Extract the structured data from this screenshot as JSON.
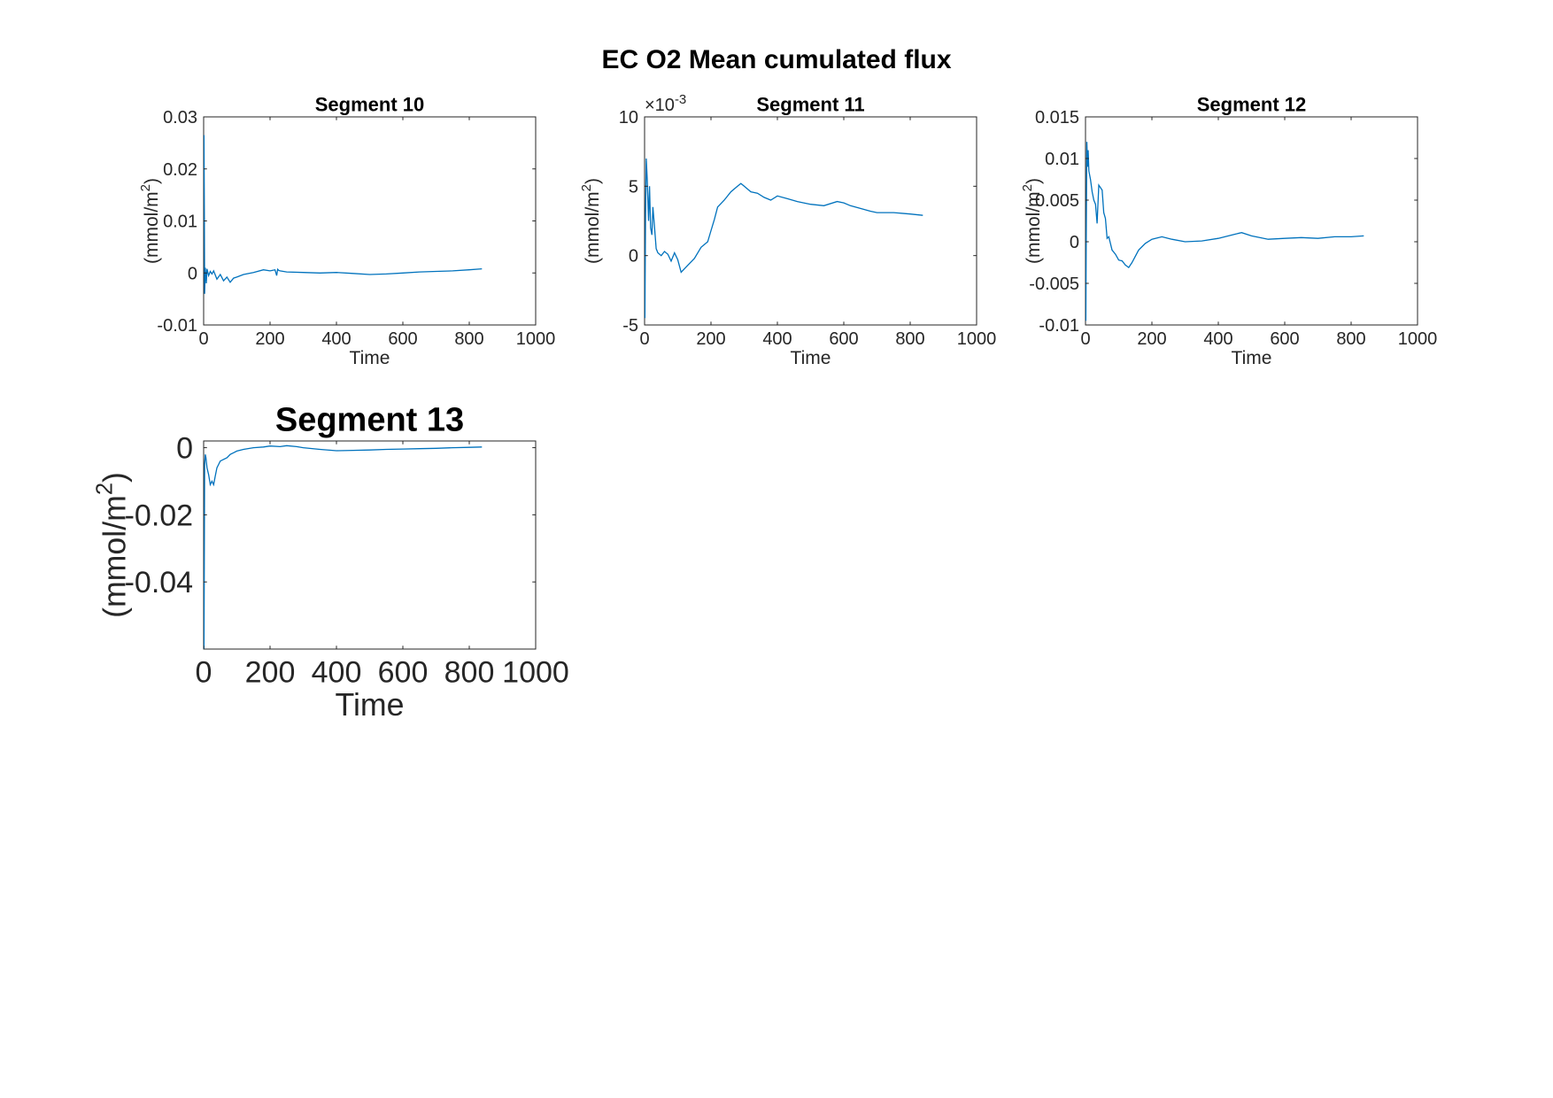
{
  "figure_title": "EC O2 Mean cumulated flux",
  "line_color": "#0072BD",
  "chart_data": [
    {
      "type": "line",
      "title": "Segment 10",
      "xlabel": "Time",
      "ylabel": "(mmol/m",
      "ylabel_sup": "2",
      "ylabel_end": ")",
      "xlim": [
        0,
        1000
      ],
      "ylim": [
        -0.01,
        0.03
      ],
      "xticks": [
        0,
        200,
        400,
        600,
        800,
        1000
      ],
      "xtick_labels": [
        "0",
        "200",
        "400",
        "600",
        "800",
        "1000"
      ],
      "yticks": [
        -0.01,
        0,
        0.01,
        0.02,
        0.03
      ],
      "ytick_labels": [
        "-0.01",
        "0",
        "0.01",
        "0.02",
        "0.03"
      ],
      "exponent_label": null,
      "grid": false,
      "legend": null,
      "series": [
        {
          "x": [
            1,
            2,
            3,
            5,
            8,
            10,
            15,
            20,
            25,
            30,
            40,
            50,
            60,
            70,
            80,
            90,
            100,
            120,
            150,
            180,
            200,
            215,
            220,
            223,
            226,
            230,
            250,
            300,
            350,
            400,
            450,
            500,
            550,
            600,
            650,
            700,
            750,
            800,
            838
          ],
          "y": [
            0.0265,
            0.012,
            -0.004,
            0.001,
            -0.002,
            0.0008,
            -0.0005,
            0.0003,
            -0.0002,
            0.0004,
            -0.0012,
            -0.0003,
            -0.0015,
            -0.0008,
            -0.0018,
            -0.001,
            -0.0008,
            -0.0003,
            0.0001,
            0.0006,
            0.0004,
            0.0006,
            -0.0005,
            0.0007,
            0.0005,
            0.0004,
            0.0002,
            0.0001,
            0.0,
            0.0001,
            -0.0001,
            -0.0003,
            -0.0002,
            0.0,
            0.0002,
            0.0003,
            0.0004,
            0.0006,
            0.0008
          ]
        }
      ]
    },
    {
      "type": "line",
      "title": "Segment 11",
      "xlabel": "Time",
      "ylabel": "(mmol/m",
      "ylabel_sup": "2",
      "ylabel_end": ")",
      "xlim": [
        0,
        1000
      ],
      "ylim": [
        -5,
        10
      ],
      "xticks": [
        0,
        200,
        400,
        600,
        800,
        1000
      ],
      "xtick_labels": [
        "0",
        "200",
        "400",
        "600",
        "800",
        "1000"
      ],
      "yticks": [
        -5,
        0,
        5,
        10
      ],
      "ytick_labels": [
        "-5",
        "0",
        "5",
        "10"
      ],
      "exponent_label": "×10",
      "exponent_sup": "-3",
      "grid": false,
      "legend": null,
      "series": [
        {
          "x": [
            1,
            3,
            5,
            8,
            12,
            15,
            18,
            22,
            25,
            30,
            35,
            40,
            50,
            60,
            70,
            80,
            90,
            100,
            110,
            130,
            150,
            170,
            190,
            200,
            210,
            220,
            240,
            260,
            280,
            290,
            300,
            320,
            340,
            360,
            380,
            400,
            430,
            460,
            500,
            540,
            580,
            600,
            620,
            650,
            680,
            700,
            750,
            800,
            838
          ],
          "y": [
            -4.5,
            3.0,
            7.0,
            5.5,
            2.5,
            5.0,
            2.0,
            1.5,
            3.5,
            2.0,
            0.5,
            0.2,
            0.0,
            0.3,
            0.1,
            -0.4,
            0.2,
            -0.3,
            -1.2,
            -0.7,
            -0.2,
            0.6,
            1.0,
            1.8,
            2.6,
            3.5,
            4.0,
            4.6,
            5.0,
            5.2,
            5.0,
            4.6,
            4.5,
            4.2,
            4.0,
            4.3,
            4.1,
            3.9,
            3.7,
            3.6,
            3.9,
            3.8,
            3.6,
            3.4,
            3.2,
            3.1,
            3.1,
            3.0,
            2.9
          ]
        }
      ]
    },
    {
      "type": "line",
      "title": "Segment 12",
      "xlabel": "Time",
      "ylabel": "(mmol/m",
      "ylabel_sup": "2",
      "ylabel_end": ")",
      "xlim": [
        0,
        1000
      ],
      "ylim": [
        -0.01,
        0.015
      ],
      "xticks": [
        0,
        200,
        400,
        600,
        800,
        1000
      ],
      "xtick_labels": [
        "0",
        "200",
        "400",
        "600",
        "800",
        "1000"
      ],
      "yticks": [
        -0.01,
        -0.005,
        0,
        0.005,
        0.01,
        0.015
      ],
      "ytick_labels": [
        "-0.01",
        "-0.005",
        "0",
        "0.005",
        "0.01",
        "0.015"
      ],
      "exponent_label": null,
      "grid": false,
      "legend": null,
      "series": [
        {
          "x": [
            1,
            2,
            4,
            6,
            8,
            10,
            15,
            20,
            25,
            30,
            35,
            40,
            45,
            50,
            55,
            60,
            65,
            70,
            80,
            90,
            100,
            110,
            120,
            130,
            140,
            160,
            180,
            200,
            230,
            260,
            300,
            350,
            400,
            450,
            470,
            500,
            550,
            600,
            650,
            700,
            750,
            800,
            838
          ],
          "y": [
            -0.0095,
            0.0,
            0.012,
            0.009,
            0.011,
            0.0085,
            0.0075,
            0.006,
            0.005,
            0.0045,
            0.0022,
            0.0068,
            0.0065,
            0.0062,
            0.0035,
            0.0028,
            0.0004,
            0.0006,
            -0.001,
            -0.0015,
            -0.0022,
            -0.0023,
            -0.0028,
            -0.0031,
            -0.0025,
            -0.001,
            -0.0002,
            0.0003,
            0.0006,
            0.0003,
            0.0,
            0.0001,
            0.0004,
            0.0009,
            0.0011,
            0.0007,
            0.0003,
            0.0004,
            0.0005,
            0.0004,
            0.0006,
            0.0006,
            0.0007
          ]
        }
      ]
    },
    {
      "type": "line",
      "title": "Segment 13",
      "xlabel": "Time",
      "ylabel": "(mmol/m",
      "ylabel_sup": "2",
      "ylabel_end": ")",
      "xlim": [
        0,
        1000
      ],
      "ylim": [
        -0.06,
        0.002
      ],
      "xticks": [
        0,
        200,
        400,
        600,
        800,
        1000
      ],
      "xtick_labels": [
        "0",
        "200",
        "400",
        "600",
        "800",
        "1000"
      ],
      "yticks": [
        -0.04,
        -0.02,
        0
      ],
      "ytick_labels": [
        "-0.04",
        "-0.02",
        "0"
      ],
      "exponent_label": null,
      "grid": false,
      "legend": null,
      "series": [
        {
          "x": [
            1,
            2,
            3,
            5,
            7,
            10,
            15,
            20,
            25,
            30,
            35,
            40,
            45,
            50,
            60,
            70,
            80,
            90,
            100,
            120,
            150,
            180,
            200,
            230,
            250,
            280,
            300,
            350,
            400,
            450,
            500,
            550,
            600,
            650,
            700,
            750,
            800,
            838
          ],
          "y": [
            -0.06,
            -0.03,
            -0.005,
            -0.002,
            -0.003,
            -0.006,
            -0.008,
            -0.011,
            -0.01,
            -0.011,
            -0.0085,
            -0.006,
            -0.005,
            -0.004,
            -0.0035,
            -0.003,
            -0.002,
            -0.0015,
            -0.001,
            -0.0005,
            0.0,
            0.0002,
            0.0005,
            0.0003,
            0.0006,
            0.0003,
            0.0,
            -0.0005,
            -0.0009,
            -0.0008,
            -0.0007,
            -0.0005,
            -0.0004,
            -0.0003,
            -0.0002,
            0.0,
            0.0001,
            0.0002
          ]
        }
      ]
    }
  ]
}
